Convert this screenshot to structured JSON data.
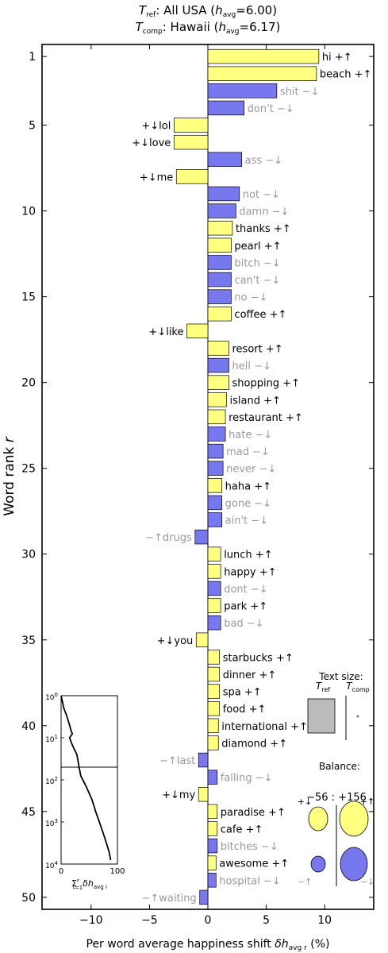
{
  "chart_data": {
    "type": "bar",
    "title_lines": [
      "T_ref: All USA (h_avg=6.00)",
      "T_comp: Hawaii (h_avg=6.17)"
    ],
    "title_parts": {
      "ref_sym": "T",
      "ref_sub": "ref",
      "ref_text": ": All USA (",
      "ref_havg_sym": "h",
      "ref_havg_sub": "avg",
      "ref_havg_val": "=6.00)",
      "comp_sym": "T",
      "comp_sub": "comp",
      "comp_text": ": Hawaii (",
      "comp_havg_sym": "h",
      "comp_havg_sub": "avg",
      "comp_havg_val": "=6.17)"
    },
    "ylabel": "Word rank r",
    "xlabel": "Per word average happiness shift δh_avg,r (%)",
    "xlabel_parts": {
      "text": "Per word average happiness shift ",
      "sym": "δh",
      "sub": "avg r",
      "unit": " (%)"
    },
    "xlim": [
      -14.2,
      14.2
    ],
    "ylim": [
      0.3,
      50.7
    ],
    "xticks": [
      -10,
      -5,
      0,
      5,
      10
    ],
    "xtick_labels": [
      "−10",
      "−5",
      "0",
      "5",
      "10"
    ],
    "yticks": [
      1,
      5,
      10,
      15,
      20,
      25,
      30,
      35,
      40,
      45,
      50
    ],
    "colors": {
      "yellow": "#ffff80",
      "blue": "#7777ee",
      "outline": "#000000",
      "gray_text": "#999999",
      "box_gray": "#bbbbbb"
    },
    "words": [
      {
        "rank": 1,
        "word": "hi",
        "value": 9.5,
        "type": "+↑"
      },
      {
        "rank": 2,
        "word": "beach",
        "value": 9.3,
        "type": "+↑"
      },
      {
        "rank": 3,
        "word": "shit",
        "value": 5.9,
        "type": "−↓"
      },
      {
        "rank": 4,
        "word": "don't",
        "value": 3.1,
        "type": "−↓"
      },
      {
        "rank": 5,
        "word": "lol",
        "value": -2.9,
        "type": "+↓"
      },
      {
        "rank": 6,
        "word": "love",
        "value": -2.9,
        "type": "+↓"
      },
      {
        "rank": 7,
        "word": "ass",
        "value": 2.9,
        "type": "−↓"
      },
      {
        "rank": 8,
        "word": "me",
        "value": -2.7,
        "type": "+↓"
      },
      {
        "rank": 9,
        "word": "not",
        "value": 2.7,
        "type": "−↓"
      },
      {
        "rank": 10,
        "word": "damn",
        "value": 2.4,
        "type": "−↓"
      },
      {
        "rank": 11,
        "word": "thanks",
        "value": 2.1,
        "type": "+↑"
      },
      {
        "rank": 12,
        "word": "pearl",
        "value": 2.0,
        "type": "+↑"
      },
      {
        "rank": 13,
        "word": "bitch",
        "value": 2.0,
        "type": "−↓"
      },
      {
        "rank": 14,
        "word": "can't",
        "value": 2.0,
        "type": "−↓"
      },
      {
        "rank": 15,
        "word": "no",
        "value": 2.0,
        "type": "−↓"
      },
      {
        "rank": 16,
        "word": "coffee",
        "value": 2.0,
        "type": "+↑"
      },
      {
        "rank": 17,
        "word": "like",
        "value": -1.8,
        "type": "+↓"
      },
      {
        "rank": 18,
        "word": "resort",
        "value": 1.8,
        "type": "+↑"
      },
      {
        "rank": 19,
        "word": "hell",
        "value": 1.8,
        "type": "−↓"
      },
      {
        "rank": 20,
        "word": "shopping",
        "value": 1.8,
        "type": "+↑"
      },
      {
        "rank": 21,
        "word": "island",
        "value": 1.6,
        "type": "+↑"
      },
      {
        "rank": 22,
        "word": "restaurant",
        "value": 1.5,
        "type": "+↑"
      },
      {
        "rank": 23,
        "word": "hate",
        "value": 1.5,
        "type": "−↓"
      },
      {
        "rank": 24,
        "word": "mad",
        "value": 1.3,
        "type": "−↓"
      },
      {
        "rank": 25,
        "word": "never",
        "value": 1.3,
        "type": "−↓"
      },
      {
        "rank": 26,
        "word": "haha",
        "value": 1.2,
        "type": "+↑"
      },
      {
        "rank": 27,
        "word": "gone",
        "value": 1.2,
        "type": "−↓"
      },
      {
        "rank": 28,
        "word": "ain't",
        "value": 1.2,
        "type": "−↓"
      },
      {
        "rank": 29,
        "word": "drugs",
        "value": -1.1,
        "type": "−↑"
      },
      {
        "rank": 30,
        "word": "lunch",
        "value": 1.1,
        "type": "+↑"
      },
      {
        "rank": 31,
        "word": "happy",
        "value": 1.1,
        "type": "+↑"
      },
      {
        "rank": 32,
        "word": "dont",
        "value": 1.1,
        "type": "−↓"
      },
      {
        "rank": 33,
        "word": "park",
        "value": 1.1,
        "type": "+↑"
      },
      {
        "rank": 34,
        "word": "bad",
        "value": 1.1,
        "type": "−↓"
      },
      {
        "rank": 35,
        "word": "you",
        "value": -1.0,
        "type": "+↓"
      },
      {
        "rank": 36,
        "word": "starbucks",
        "value": 1.0,
        "type": "+↑"
      },
      {
        "rank": 37,
        "word": "dinner",
        "value": 1.0,
        "type": "+↑"
      },
      {
        "rank": 38,
        "word": "spa",
        "value": 1.0,
        "type": "+↑"
      },
      {
        "rank": 39,
        "word": "food",
        "value": 1.0,
        "type": "+↑"
      },
      {
        "rank": 40,
        "word": "international",
        "value": 0.9,
        "type": "+↑"
      },
      {
        "rank": 41,
        "word": "diamond",
        "value": 0.9,
        "type": "+↑"
      },
      {
        "rank": 42,
        "word": "last",
        "value": -0.8,
        "type": "−↑"
      },
      {
        "rank": 43,
        "word": "falling",
        "value": 0.8,
        "type": "−↓"
      },
      {
        "rank": 44,
        "word": "my",
        "value": -0.8,
        "type": "+↓"
      },
      {
        "rank": 45,
        "word": "paradise",
        "value": 0.8,
        "type": "+↑"
      },
      {
        "rank": 46,
        "word": "cafe",
        "value": 0.8,
        "type": "+↑"
      },
      {
        "rank": 47,
        "word": "bitches",
        "value": 0.8,
        "type": "−↓"
      },
      {
        "rank": 48,
        "word": "awesome",
        "value": 0.7,
        "type": "+↑"
      },
      {
        "rank": 49,
        "word": "hospital",
        "value": 0.7,
        "type": "−↓"
      },
      {
        "rank": 50,
        "word": "waiting",
        "value": -0.7,
        "type": "−↑"
      }
    ],
    "inset_cumulative": {
      "xlim": [
        0,
        100
      ],
      "xticks": [
        0,
        100
      ],
      "ylim_log": [
        1,
        10000
      ],
      "ytick_bases": [
        "10",
        "10",
        "10",
        "10",
        "10"
      ],
      "ytick_exps": [
        "0",
        "1",
        "2",
        "3",
        "4"
      ],
      "hline_rank": 50,
      "xlabel_parts": {
        "sum": "Σ",
        "sub": "i=1",
        "sup": "r",
        "sym": "δh",
        "sub2": "avg i"
      },
      "curve": [
        [
          0,
          1
        ],
        [
          5,
          2
        ],
        [
          10,
          3
        ],
        [
          15,
          5
        ],
        [
          18,
          7
        ],
        [
          20,
          8
        ],
        [
          15,
          10
        ],
        [
          20,
          15
        ],
        [
          28,
          25
        ],
        [
          32,
          50
        ],
        [
          35,
          80
        ],
        [
          45,
          150
        ],
        [
          55,
          300
        ],
        [
          62,
          600
        ],
        [
          70,
          1200
        ],
        [
          78,
          2500
        ],
        [
          85,
          5000
        ],
        [
          88,
          8000
        ]
      ]
    },
    "text_size": {
      "title": "Text size:",
      "ref_sym": "T",
      "ref_sub": "ref",
      "comp_sym": "T",
      "comp_sub": "comp"
    },
    "balance": {
      "title": "Balance:",
      "value": "−56 : +156",
      "quadrants": [
        "+↓",
        "+↑",
        "−↑",
        "−↓"
      ]
    }
  }
}
